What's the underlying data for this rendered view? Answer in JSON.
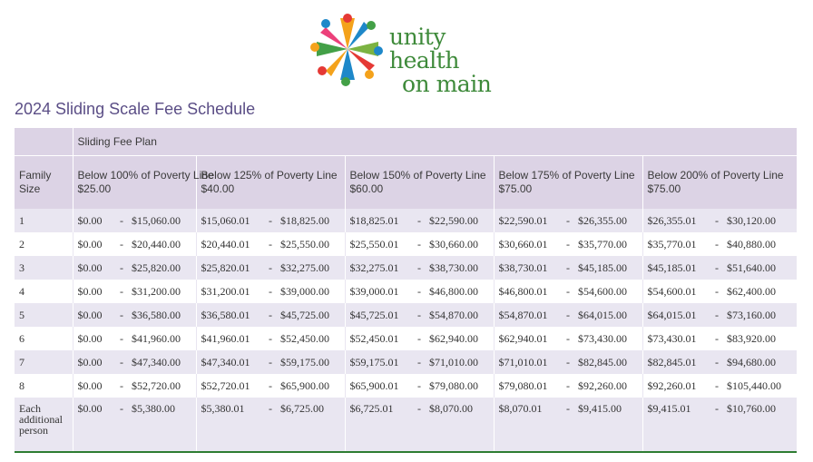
{
  "logo": {
    "line1": "unity health",
    "line2": "on main"
  },
  "page_title": "2024 Sliding Scale Fee Schedule",
  "table": {
    "plan_header": "Sliding Fee Plan",
    "family_size_header": "Family Size",
    "bands": [
      {
        "label": "Below 100% of Poverty Line",
        "fee": "$25.00"
      },
      {
        "label": "Below 125% of Poverty Line",
        "fee": "$40.00"
      },
      {
        "label": "Below 150% of Poverty Line",
        "fee": "$60.00"
      },
      {
        "label": "Below 175% of Poverty Line",
        "fee": "$75.00"
      },
      {
        "label": "Below 200% of Poverty Line",
        "fee": "$75.00"
      }
    ],
    "rows": [
      {
        "size": "1",
        "ranges": [
          [
            "$0.00",
            "$15,060.00"
          ],
          [
            "$15,060.01",
            "$18,825.00"
          ],
          [
            "$18,825.01",
            "$22,590.00"
          ],
          [
            "$22,590.01",
            "$26,355.00"
          ],
          [
            "$26,355.01",
            "$30,120.00"
          ]
        ]
      },
      {
        "size": "2",
        "ranges": [
          [
            "$0.00",
            "$20,440.00"
          ],
          [
            "$20,440.01",
            "$25,550.00"
          ],
          [
            "$25,550.01",
            "$30,660.00"
          ],
          [
            "$30,660.01",
            "$35,770.00"
          ],
          [
            "$35,770.01",
            "$40,880.00"
          ]
        ]
      },
      {
        "size": "3",
        "ranges": [
          [
            "$0.00",
            "$25,820.00"
          ],
          [
            "$25,820.01",
            "$32,275.00"
          ],
          [
            "$32,275.01",
            "$38,730.00"
          ],
          [
            "$38,730.01",
            "$45,185.00"
          ],
          [
            "$45,185.01",
            "$51,640.00"
          ]
        ]
      },
      {
        "size": "4",
        "ranges": [
          [
            "$0.00",
            "$31,200.00"
          ],
          [
            "$31,200.01",
            "$39,000.00"
          ],
          [
            "$39,000.01",
            "$46,800.00"
          ],
          [
            "$46,800.01",
            "$54,600.00"
          ],
          [
            "$54,600.01",
            "$62,400.00"
          ]
        ]
      },
      {
        "size": "5",
        "ranges": [
          [
            "$0.00",
            "$36,580.00"
          ],
          [
            "$36,580.01",
            "$45,725.00"
          ],
          [
            "$45,725.01",
            "$54,870.00"
          ],
          [
            "$54,870.01",
            "$64,015.00"
          ],
          [
            "$64,015.01",
            "$73,160.00"
          ]
        ]
      },
      {
        "size": "6",
        "ranges": [
          [
            "$0.00",
            "$41,960.00"
          ],
          [
            "$41,960.01",
            "$52,450.00"
          ],
          [
            "$52,450.01",
            "$62,940.00"
          ],
          [
            "$62,940.01",
            "$73,430.00"
          ],
          [
            "$73,430.01",
            "$83,920.00"
          ]
        ]
      },
      {
        "size": "7",
        "ranges": [
          [
            "$0.00",
            "$47,340.00"
          ],
          [
            "$47,340.01",
            "$59,175.00"
          ],
          [
            "$59,175.01",
            "$71,010.00"
          ],
          [
            "$71,010.01",
            "$82,845.00"
          ],
          [
            "$82,845.01",
            "$94,680.00"
          ]
        ]
      },
      {
        "size": "8",
        "ranges": [
          [
            "$0.00",
            "$52,720.00"
          ],
          [
            "$52,720.01",
            "$65,900.00"
          ],
          [
            "$65,900.01",
            "$79,080.00"
          ],
          [
            "$79,080.01",
            "$92,260.00"
          ],
          [
            "$92,260.01",
            "$105,440.00"
          ]
        ]
      },
      {
        "size": "Each additional person",
        "ranges": [
          [
            "$0.00",
            "$5,380.00"
          ],
          [
            "$5,380.01",
            "$6,725.00"
          ],
          [
            "$6,725.01",
            "$8,070.00"
          ],
          [
            "$8,070.01",
            "$9,415.00"
          ],
          [
            "$9,415.01",
            "$10,760.00"
          ]
        ]
      }
    ],
    "separator": "-"
  },
  "colors": {
    "header_bg": "#dcd3e5",
    "stripe_bg": "#e9e6f1",
    "title": "#5b4e86",
    "accent_rule": "#2e7d32",
    "logo_text": "#3e8a3a"
  }
}
